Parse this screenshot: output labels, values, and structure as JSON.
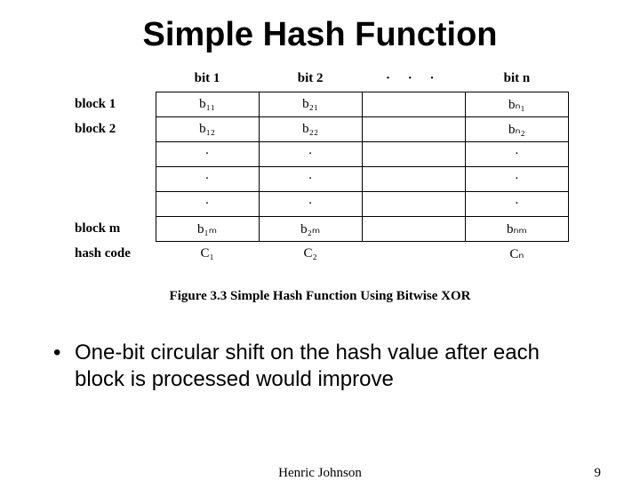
{
  "slide": {
    "title": "Simple Hash Function",
    "bullet": "One-bit circular shift on the hash value after each block is processed would improve"
  },
  "figure": {
    "caption": "Figure 3.3   Simple Hash Function Using Bitwise XOR",
    "col_headers": [
      "bit 1",
      "bit 2",
      "·   ·   ·",
      "bit n"
    ],
    "row_labels": [
      "block 1",
      "block 2",
      "",
      "",
      "",
      "block m",
      "hash code"
    ],
    "cells": {
      "r0": [
        "b₁₁",
        "b₂₁",
        "",
        "bₙ₁"
      ],
      "r1": [
        "b₁₂",
        "b₂₂",
        "",
        "bₙ₂"
      ],
      "r2": [
        "·",
        "·",
        "",
        "·"
      ],
      "r3": [
        "·",
        "·",
        "",
        "·"
      ],
      "r4": [
        "·",
        "·",
        "",
        "·"
      ],
      "r5": [
        "b₁ₘ",
        "b₂ₘ",
        "",
        "bₙₘ"
      ],
      "r6": [
        "C₁",
        "C₂",
        "",
        "Cₙ"
      ]
    },
    "border_color": "#000000",
    "font_family": "Times New Roman",
    "header_fontsize": 15,
    "cell_fontsize": 15
  },
  "footer": {
    "author": "Henric Johnson",
    "page": "9"
  },
  "colors": {
    "background": "#ffffff",
    "text": "#000000"
  }
}
